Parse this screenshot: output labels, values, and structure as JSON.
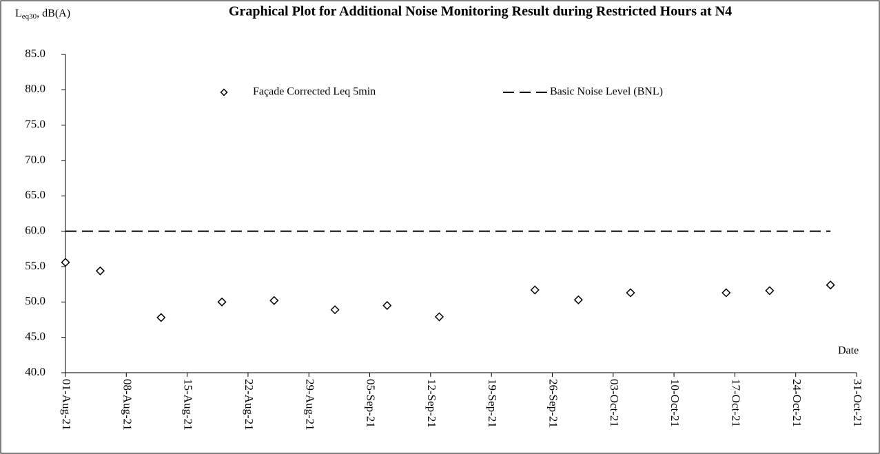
{
  "chart_data": {
    "type": "scatter",
    "title": "Graphical Plot for Additional Noise Monitoring Result during Restricted Hours at N4",
    "y_label_parts": [
      "L",
      "eq30",
      ", dB(A)"
    ],
    "x_label": "Date",
    "ylim": [
      40,
      85
    ],
    "yticks": [
      {
        "value": 40,
        "label": "40.0"
      },
      {
        "value": 45,
        "label": "45.0"
      },
      {
        "value": 50,
        "label": "50.0"
      },
      {
        "value": 55,
        "label": "55.0"
      },
      {
        "value": 60,
        "label": "60.0"
      },
      {
        "value": 65,
        "label": "65.0"
      },
      {
        "value": 70,
        "label": "70.0"
      },
      {
        "value": 75,
        "label": "75.0"
      },
      {
        "value": 80,
        "label": "80.0"
      },
      {
        "value": 85,
        "label": "85.0"
      }
    ],
    "xlim": [
      "2021-08-01",
      "2021-10-31"
    ],
    "xticks": [
      {
        "value": "2021-08-01",
        "label": "01-Aug-21"
      },
      {
        "value": "2021-08-08",
        "label": "08-Aug-21"
      },
      {
        "value": "2021-08-15",
        "label": "15-Aug-21"
      },
      {
        "value": "2021-08-22",
        "label": "22-Aug-21"
      },
      {
        "value": "2021-08-29",
        "label": "29-Aug-21"
      },
      {
        "value": "2021-09-05",
        "label": "05-Sep-21"
      },
      {
        "value": "2021-09-12",
        "label": "12-Sep-21"
      },
      {
        "value": "2021-09-19",
        "label": "19-Sep-21"
      },
      {
        "value": "2021-09-26",
        "label": "26-Sep-21"
      },
      {
        "value": "2021-10-03",
        "label": "03-Oct-21"
      },
      {
        "value": "2021-10-10",
        "label": "10-Oct-21"
      },
      {
        "value": "2021-10-17",
        "label": "17-Oct-21"
      },
      {
        "value": "2021-10-24",
        "label": "24-Oct-21"
      },
      {
        "value": "2021-10-31",
        "label": "31-Oct-21"
      }
    ],
    "grid": false,
    "series": [
      {
        "name": "Façade Corrected Leq 5min",
        "color": "#000000",
        "marker": "diamond",
        "x": [
          "2021-08-01",
          "2021-08-05",
          "2021-08-12",
          "2021-08-19",
          "2021-08-25",
          "2021-09-01",
          "2021-09-07",
          "2021-09-13",
          "2021-09-24",
          "2021-09-29",
          "2021-10-05",
          "2021-10-16",
          "2021-10-21",
          "2021-10-28"
        ],
        "values": [
          55.6,
          54.4,
          47.8,
          50.0,
          50.2,
          48.9,
          49.5,
          47.9,
          51.7,
          50.3,
          51.3,
          51.3,
          51.6,
          52.4
        ]
      },
      {
        "name": "Basic Noise Level (BNL)",
        "color": "#000000",
        "line_style": "dashed",
        "x": [
          "2021-08-01",
          "2021-10-28"
        ],
        "values": [
          60,
          60
        ]
      }
    ]
  }
}
